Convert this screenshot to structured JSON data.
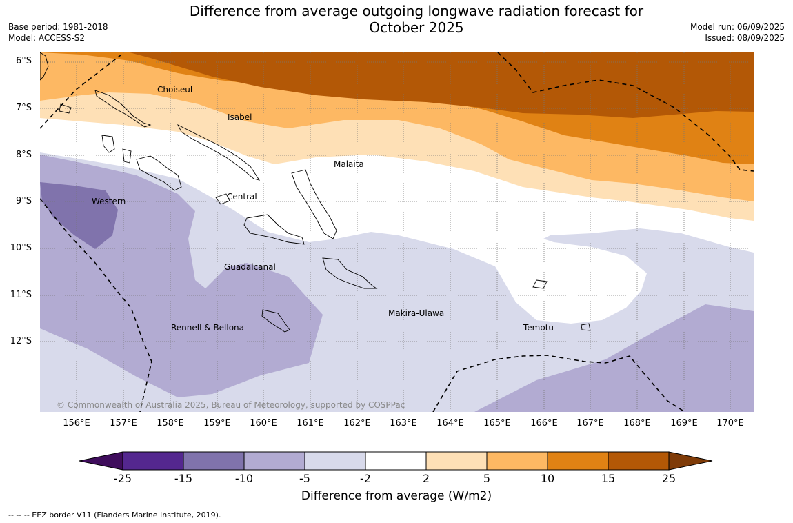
{
  "header": {
    "title_line1": "Difference from average outgoing longwave radiation forecast for",
    "title_line2": "October 2025",
    "base_period": "Base period: 1981-2018",
    "model": "Model: ACCESS-S2",
    "model_run": "Model run: 06/09/2025",
    "issued": "Issued: 08/09/2025"
  },
  "map": {
    "lat_labels": [
      "6°S",
      "7°S",
      "8°S",
      "9°S",
      "10°S",
      "11°S",
      "12°S"
    ],
    "lon_labels": [
      "156°E",
      "157°E",
      "158°E",
      "159°E",
      "160°E",
      "161°E",
      "162°E",
      "163°E",
      "164°E",
      "165°E",
      "166°E",
      "167°E",
      "168°E",
      "169°E",
      "170°E"
    ],
    "regions": {
      "choiseul": "Choiseul",
      "isabel": "Isabel",
      "malaita": "Malaita",
      "western": "Western",
      "central": "Central",
      "guadalcanal": "Guadalcanal",
      "makira": "Makira-Ulawa",
      "rennell": "Rennell & Bellona",
      "temotu": "Temotu"
    },
    "copyright": "© Commonwealth of Australia 2025, Bureau of Meteorology, supported by COSPPac"
  },
  "colorbar": {
    "ticks": [
      "-25",
      "-15",
      "-10",
      "-5",
      "-2",
      "2",
      "5",
      "10",
      "15",
      "25"
    ],
    "colors": [
      "#3f0d5c",
      "#54278f",
      "#8073ac",
      "#b2abd2",
      "#d8daeb",
      "#ffffff",
      "#fee0b6",
      "#fdb863",
      "#e08214",
      "#b35806",
      "#7f3b08"
    ],
    "label": "Difference from average (W/m2)"
  },
  "legend_note": "--  --  -- EEZ border V11 (Flanders Marine Institute, 2019)."
}
